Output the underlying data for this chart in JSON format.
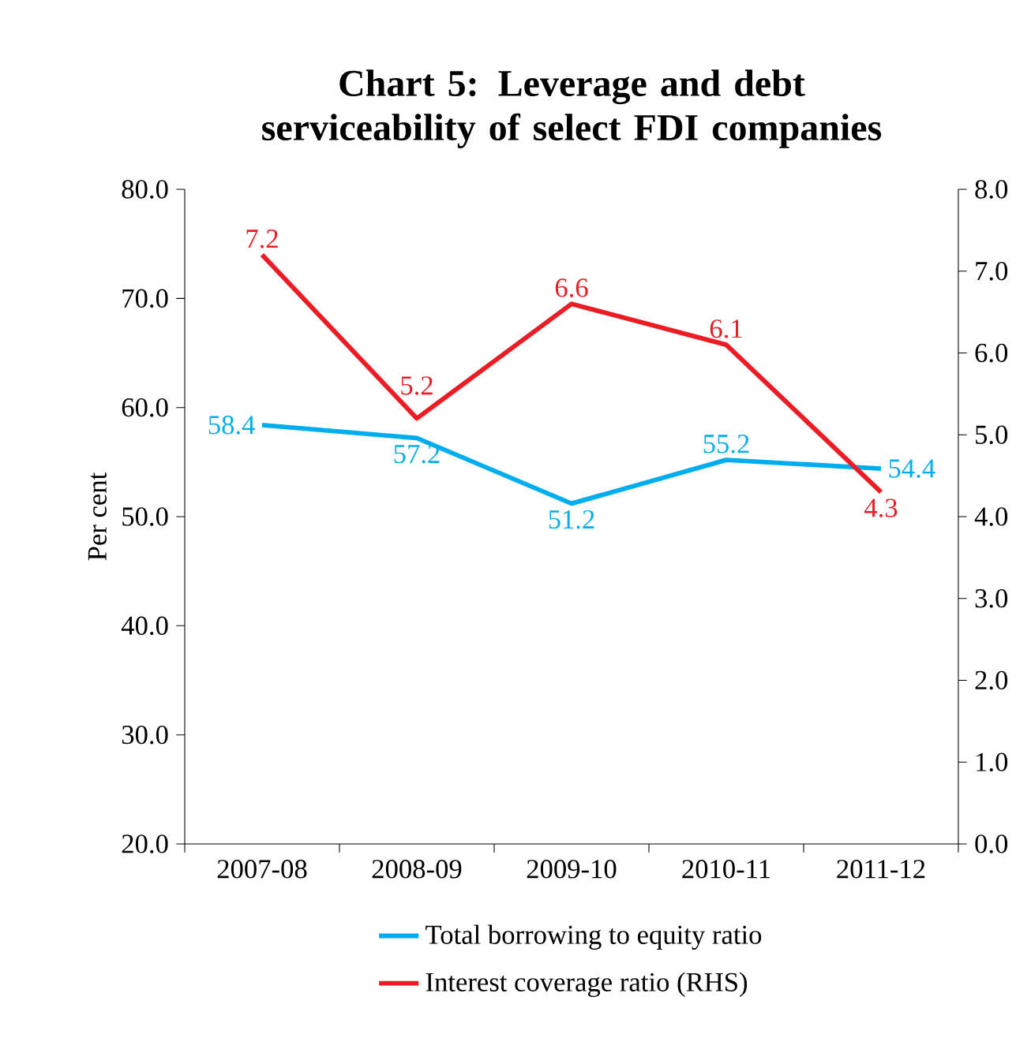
{
  "chart_data": {
    "type": "line",
    "title": "Chart 5: Leverage and debt serviceability of select FDI companies",
    "ylabel": "Per cent",
    "categories": [
      "2007-08",
      "2008-09",
      "2009-10",
      "2010-11",
      "2011-12"
    ],
    "series": [
      {
        "name": "Total borrowing to equity ratio",
        "color": "#00aeef",
        "values": [
          58.4,
          57.2,
          51.2,
          55.2,
          54.4
        ]
      },
      {
        "name": "Interest coverage ratio (RHS)",
        "color": "#ed1c24",
        "axis": "y2",
        "values": [
          7.2,
          5.2,
          6.6,
          6.1,
          4.3
        ]
      }
    ],
    "ylim": [
      20,
      80
    ],
    "yticks": [
      {
        "value": 20,
        "label": "20.0"
      },
      {
        "value": 30,
        "label": "30.0"
      },
      {
        "value": 40,
        "label": "40.0"
      },
      {
        "value": 50,
        "label": "50.0"
      },
      {
        "value": 60,
        "label": "60.0"
      },
      {
        "value": 70,
        "label": "70.0"
      },
      {
        "value": 80,
        "label": "80.0"
      }
    ],
    "y2lim": [
      0,
      8
    ],
    "y2ticks": [
      {
        "value": 0,
        "label": "0.0"
      },
      {
        "value": 1,
        "label": "1.0"
      },
      {
        "value": 2,
        "label": "2.0"
      },
      {
        "value": 3,
        "label": "3.0"
      },
      {
        "value": 4,
        "label": "4.0"
      },
      {
        "value": 5,
        "label": "5.0"
      },
      {
        "value": 6,
        "label": "6.0"
      },
      {
        "value": 7,
        "label": "7.0"
      },
      {
        "value": 8,
        "label": "8.0"
      }
    ],
    "data_labels": true,
    "grid": false,
    "legend": "bottom"
  }
}
